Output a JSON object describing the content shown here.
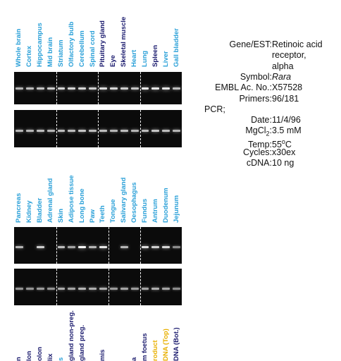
{
  "colors": {
    "tissue_label": "#2aa0d8",
    "tissue_label_dark": "#1b1b6e",
    "control_label": "#e8b000"
  },
  "panel1": {
    "lanes": [
      {
        "label": "Whole brain",
        "color": "tissue_label"
      },
      {
        "label": "Cortex",
        "color": "tissue_label"
      },
      {
        "label": "Hippocampus",
        "color": "tissue_label"
      },
      {
        "label": "Mid brain",
        "color": "tissue_label"
      },
      {
        "label": "Striatum",
        "color": "tissue_label"
      },
      {
        "label": "Olfactory bulb",
        "color": "tissue_label"
      },
      {
        "label": "Cerebellum",
        "color": "tissue_label"
      },
      {
        "label": "Spinal cord",
        "color": "tissue_label"
      },
      {
        "label": "Pituitary gland",
        "color": "tissue_label_dark"
      },
      {
        "label": "Eye",
        "color": "tissue_label_dark"
      },
      {
        "label": "Skeletal muscle",
        "color": "tissue_label_dark"
      },
      {
        "label": "Heart",
        "color": "tissue_label"
      },
      {
        "label": "Lung",
        "color": "tissue_label"
      },
      {
        "label": "Spleen",
        "color": "tissue_label_dark"
      },
      {
        "label": "Liver",
        "color": "tissue_label"
      },
      {
        "label": "Gall bladder",
        "color": "tissue_label"
      }
    ],
    "separators_after": [
      3,
      7,
      11
    ],
    "gel_top_bands": [
      0.55,
      0.6,
      0.65,
      0.7,
      0.75,
      0.75,
      0.75,
      0.7,
      0.8,
      0.75,
      0.7,
      0.65,
      0.9,
      0.85,
      0.85,
      0.6
    ],
    "gel_bottom_bands": [
      0.55,
      0.55,
      0.6,
      0.55,
      0.6,
      0.6,
      0.65,
      0.6,
      0.6,
      0.55,
      0.6,
      0.55,
      0.6,
      0.65,
      0.6,
      0.55
    ]
  },
  "panel2": {
    "lanes": [
      {
        "label": "Pancreas",
        "color": "tissue_label"
      },
      {
        "label": "Kidney",
        "color": "tissue_label"
      },
      {
        "label": "Bladder",
        "color": "tissue_label"
      },
      {
        "label": "Adrenal gland",
        "color": "tissue_label"
      },
      {
        "label": "Skin",
        "color": "tissue_label"
      },
      {
        "label": "Adipose tissue",
        "color": "tissue_label"
      },
      {
        "label": "Long bone",
        "color": "tissue_label"
      },
      {
        "label": "Paw",
        "color": "tissue_label"
      },
      {
        "label": "Teeth",
        "color": "tissue_label"
      },
      {
        "label": "Tongue",
        "color": "tissue_label"
      },
      {
        "label": "Salivary gland",
        "color": "tissue_label"
      },
      {
        "label": "Oesophagus",
        "color": "tissue_label"
      },
      {
        "label": "Fundus",
        "color": "tissue_label"
      },
      {
        "label": "Antrum",
        "color": "tissue_label"
      },
      {
        "label": "Duodenum",
        "color": "tissue_label"
      },
      {
        "label": "Jejunum",
        "color": "tissue_label"
      }
    ],
    "separators_after": [
      3,
      8,
      11
    ],
    "gel_top_bands": [
      0.55,
      0.0,
      0.7,
      0.0,
      0.6,
      0.45,
      0.95,
      0.55,
      0.85,
      0.0,
      0.55,
      0.0,
      0.8,
      0.7,
      0.75,
      0.3
    ],
    "gel_bottom_bands": [
      0.35,
      0.35,
      0.4,
      0.35,
      0.5,
      0.45,
      0.55,
      0.5,
      0.5,
      0.4,
      0.45,
      0.4,
      0.45,
      0.5,
      0.45,
      0.3
    ]
  },
  "panel3": {
    "lanes": [
      {
        "label": "n",
        "color": "tissue_label_dark"
      },
      {
        "label": "lon",
        "color": "tissue_label_dark"
      },
      {
        "label": "olon",
        "color": "tissue_label_dark"
      },
      {
        "label": "lix",
        "color": "tissue_label_dark"
      },
      {
        "label": "s",
        "color": "tissue_label"
      },
      {
        "label": "gland non-preg.",
        "color": "tissue_label_dark"
      },
      {
        "label": "gland preg.",
        "color": "tissue_label_dark"
      },
      {
        "label": "",
        "color": "tissue_label_dark"
      },
      {
        "label": "mis",
        "color": "tissue_label_dark"
      },
      {
        "label": "",
        "color": "tissue_label_dark"
      },
      {
        "label": "",
        "color": "tissue_label_dark"
      },
      {
        "label": "a",
        "color": "tissue_label_dark"
      },
      {
        "label": "m foetus",
        "color": "tissue_label_dark"
      },
      {
        "label": "roduct",
        "color": "control_label"
      },
      {
        "label": "DNA (Top)",
        "color": "control_label"
      },
      {
        "label": "DNA (Bot.)",
        "color": "tissue_label_dark"
      }
    ]
  },
  "info": [
    {
      "key": "Gene/EST:",
      "value": "Retinoic acid"
    },
    {
      "key": "",
      "value": "receptor,"
    },
    {
      "key": "",
      "value": "alpha"
    },
    {
      "key": "Symbol:",
      "value": "Rara",
      "italic": true
    },
    {
      "key": "EMBL Ac. No.:",
      "value": "X57528"
    },
    {
      "key": "Primers:",
      "value": "96/181"
    },
    {
      "key": "PCR;",
      "value": "",
      "left": true
    },
    {
      "key": "Date:",
      "value": "11/4/96"
    },
    {
      "key": "MgCl",
      "sub": "2",
      "key2": ":",
      "value": "3.5 mM"
    },
    {
      "key": "Temp:",
      "value": "55",
      "sup": "o",
      "value2": "C"
    },
    {
      "key": "Cycles:",
      "value": "x30ex"
    },
    {
      "key": "cDNA:",
      "value": "10 ng"
    }
  ]
}
